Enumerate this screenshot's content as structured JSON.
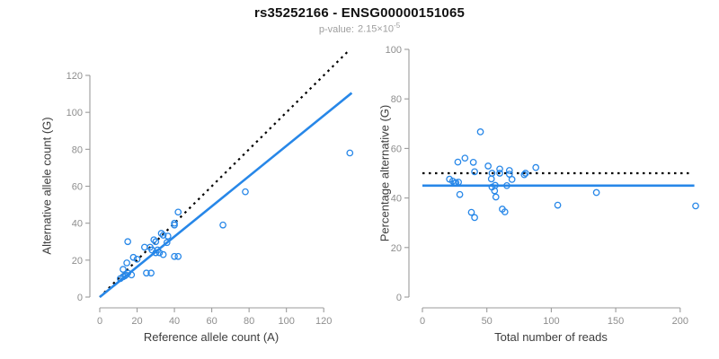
{
  "header": {
    "title": "rs35252166 - ENSG00000151065",
    "pvalue_label": "p-value:",
    "pvalue_mantissa": "2.15×10",
    "pvalue_exponent": "-5"
  },
  "colors": {
    "accent_blue": "#2787e8",
    "line_black": "#000000",
    "axis_gray": "#9b9b9b",
    "tick_text_gray": "#8e8e8e",
    "label_dark": "#3d3d3d",
    "subtitle_gray": "#9e9e9e",
    "title_black": "#111111"
  },
  "chart_data": [
    {
      "type": "scatter",
      "name": "allele-counts",
      "xlabel": "Reference allele count (A)",
      "ylabel": "Alternative allele count (G)",
      "xlim": [
        0,
        135
      ],
      "ylim": [
        0,
        135
      ],
      "xticks": [
        0,
        20,
        40,
        60,
        80,
        100,
        120
      ],
      "yticks": [
        0,
        20,
        40,
        60,
        80,
        100,
        120
      ],
      "grid": false,
      "legend": null,
      "points": [
        [
          15,
          30
        ],
        [
          12.5,
          15
        ],
        [
          14.5,
          18.5
        ],
        [
          18,
          21.5
        ],
        [
          20,
          20.5
        ],
        [
          11,
          10
        ],
        [
          12.5,
          11
        ],
        [
          13.5,
          11.5
        ],
        [
          14,
          12
        ],
        [
          15,
          13
        ],
        [
          17,
          12
        ],
        [
          25,
          13
        ],
        [
          27.5,
          13
        ],
        [
          24,
          27
        ],
        [
          27,
          27
        ],
        [
          28,
          25.5
        ],
        [
          30,
          24
        ],
        [
          31,
          25.5
        ],
        [
          32,
          24
        ],
        [
          34,
          23
        ],
        [
          29,
          31
        ],
        [
          30,
          30
        ],
        [
          33,
          34.5
        ],
        [
          34,
          33.5
        ],
        [
          36,
          29.5
        ],
        [
          36.5,
          33
        ],
        [
          40,
          22
        ],
        [
          42,
          22
        ],
        [
          40,
          39
        ],
        [
          40,
          40
        ],
        [
          42,
          46
        ],
        [
          66,
          39
        ],
        [
          78,
          57
        ],
        [
          134,
          78
        ]
      ],
      "lines": [
        {
          "name": "identity-line",
          "style": "dotted",
          "color": "#000000",
          "x1": 0,
          "y1": 0,
          "x2": 133,
          "y2": 133
        },
        {
          "name": "regression-line",
          "style": "solid",
          "color": "#2787e8",
          "x1": 0,
          "y1": 0,
          "x2": 135,
          "y2": 110.5
        }
      ]
    },
    {
      "type": "scatter",
      "name": "percentage-vs-coverage",
      "xlabel": "Total number of reads",
      "ylabel": "Percentage alternative (G)",
      "xlim": [
        0,
        215
      ],
      "ylim": [
        0,
        100
      ],
      "xticks": [
        0,
        50,
        100,
        150,
        200
      ],
      "yticks": [
        0,
        20,
        40,
        60,
        80,
        100
      ],
      "grid": false,
      "legend": null,
      "points": [
        [
          45,
          66.7
        ],
        [
          27.5,
          54.5
        ],
        [
          33,
          56.1
        ],
        [
          39.5,
          54.4
        ],
        [
          40.5,
          50.6
        ],
        [
          21,
          47.6
        ],
        [
          23.5,
          46.8
        ],
        [
          25,
          46.0
        ],
        [
          26,
          46.2
        ],
        [
          28,
          46.4
        ],
        [
          29,
          41.4
        ],
        [
          38,
          34.2
        ],
        [
          40.5,
          32.1
        ],
        [
          51,
          52.9
        ],
        [
          54,
          50.0
        ],
        [
          53.5,
          47.7
        ],
        [
          56.5,
          45.1
        ],
        [
          54,
          44.4
        ],
        [
          56,
          42.9
        ],
        [
          57,
          40.4
        ],
        [
          60,
          51.7
        ],
        [
          60,
          50.0
        ],
        [
          67.5,
          51.1
        ],
        [
          67.5,
          49.6
        ],
        [
          65.5,
          45.0
        ],
        [
          69.5,
          47.5
        ],
        [
          62,
          35.5
        ],
        [
          64,
          34.4
        ],
        [
          79,
          49.4
        ],
        [
          80,
          50.0
        ],
        [
          88,
          52.3
        ],
        [
          105,
          37.1
        ],
        [
          135,
          42.2
        ],
        [
          212,
          36.8
        ]
      ],
      "lines": [
        {
          "name": "expected-50pct-line",
          "style": "dotted",
          "color": "#000000",
          "x1": 0,
          "y1": 50,
          "x2": 208,
          "y2": 50
        },
        {
          "name": "mean-percentage-line",
          "style": "solid",
          "color": "#2787e8",
          "x1": 0,
          "y1": 45,
          "x2": 211,
          "y2": 45
        }
      ]
    }
  ]
}
